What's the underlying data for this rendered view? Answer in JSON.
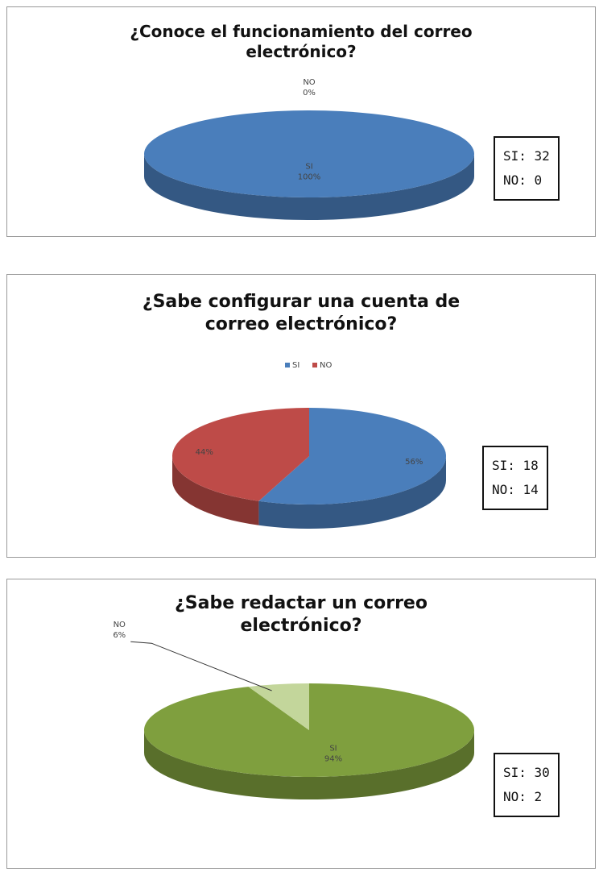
{
  "chart_data": [
    {
      "type": "pie",
      "title": "¿Conoce el funcionamiento del correo electrónico?",
      "categories": [
        "SI",
        "NO"
      ],
      "values": [
        100,
        0
      ],
      "value_labels": [
        "100%",
        "0%"
      ],
      "colors": [
        "#4a7ebb",
        "#be4b48"
      ],
      "legend": false,
      "annotations": [
        "SI: 32",
        "NO: 0"
      ]
    },
    {
      "type": "pie",
      "title": "¿Sabe configurar una cuenta de correo electrónico?",
      "categories": [
        "SI",
        "NO"
      ],
      "values": [
        56,
        44
      ],
      "value_labels": [
        "56%",
        "44%"
      ],
      "colors": [
        "#4a7ebb",
        "#be4b48"
      ],
      "legend": true,
      "annotations": [
        "SI: 18",
        "NO: 14"
      ]
    },
    {
      "type": "pie",
      "title": "¿Sabe redactar un correo electrónico?",
      "categories": [
        "SI",
        "NO"
      ],
      "values": [
        94,
        6
      ],
      "value_labels": [
        "94%",
        "6%"
      ],
      "colors": [
        "#7f9f3e",
        "#c3d69b"
      ],
      "legend": false,
      "annotations": [
        "SI: 30",
        "NO: 2"
      ]
    }
  ]
}
